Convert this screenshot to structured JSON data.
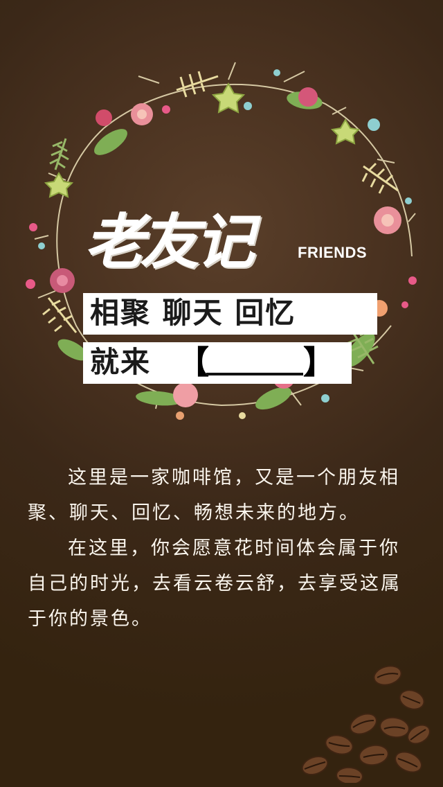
{
  "logo": {
    "cn": "老友记",
    "en": "FRIENDS"
  },
  "tagline": {
    "line1": "相聚 聊天 回忆",
    "line2_prefix": "就来",
    "bracket_open": "【",
    "bracket_close": "】"
  },
  "body": {
    "paragraph1": "这里是一家咖啡馆，又是一个朋友相聚、聊天、回忆、畅想未来的地方。",
    "paragraph2": "在这里，你会愿意花时间体会属于你自己的时光，去看云卷云舒，去享受这属于你的景色。"
  },
  "colors": {
    "background": "#3b2818",
    "text": "#fbf6ee",
    "leaf_green": "#7fae55",
    "flower_pink": "#e9909a",
    "bean": "#6b4226"
  },
  "icons": [
    "flower-wreath-icon",
    "coffee-beans-icon"
  ]
}
